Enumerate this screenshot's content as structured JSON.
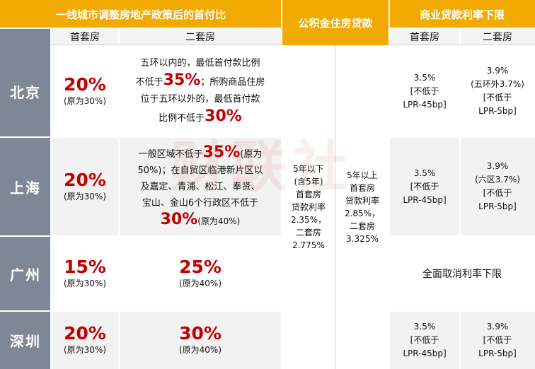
{
  "header": {
    "down_payment_title": "一线城市调整房地产政策后的首付比",
    "provident_title": "公积金住房贷款",
    "commercial_title": "商业贷款利率下限",
    "first_home": "首套房",
    "second_home": "二套房",
    "commercial_first": "首套房",
    "commercial_second": "二套房"
  },
  "rows": [
    {
      "city": "北京",
      "first_pct": "20%",
      "first_note": "(原为30%)",
      "second_lines": [
        {
          "text": "五环以内的，最低首付款比例",
          "red": ""
        },
        {
          "text": "不低于",
          "red": "35%",
          "after": "；所购商品住房"
        },
        {
          "text": "位于五环以外的，最低首付款",
          "red": ""
        },
        {
          "text": "比例不低于",
          "red": "30%",
          "after": ""
        }
      ],
      "com_first": [
        "3.5%",
        "[不低于",
        "LPR-45bp]"
      ],
      "com_second": [
        "3.9%",
        "(五环外3.7%)",
        "[不低于",
        "LPR-5bp]"
      ]
    },
    {
      "city": "上海",
      "first_pct": "20%",
      "first_note": "(原为30%)",
      "second_lines": [
        {
          "text": "一般区域不低于",
          "red": "35%",
          "after": "(原为"
        },
        {
          "text": "50%)；在自贸区临港新片区以",
          "red": ""
        },
        {
          "text": "及嘉定、青浦、松江、奉贤、",
          "red": ""
        },
        {
          "text": "宝山、金山6个行政区不低于",
          "red": ""
        },
        {
          "text": "",
          "red": "30%",
          "after": "(原为40%)"
        }
      ],
      "com_first": [
        "3.5%",
        "[不低于",
        "LPR-45bp]"
      ],
      "com_second": [
        "3.9%",
        "(六区3.7%)",
        "[不低于",
        "LPR-5bp]"
      ]
    },
    {
      "city": "广州",
      "first_pct": "15%",
      "first_note": "(原为30%)",
      "second_pct": "25%",
      "second_note": "(原为40%)",
      "commercial_merged": "全面取消利率下限"
    },
    {
      "city": "深圳",
      "first_pct": "20%",
      "first_note": "(原为30%)",
      "second_pct": "30%",
      "second_note": "(原为40%)",
      "com_first": [
        "3.5%",
        "[不低于",
        "LPR-45bp]"
      ],
      "com_second": [
        "3.9%",
        "[不低于",
        "LPR-5bp]"
      ]
    }
  ],
  "provident": {
    "below5": [
      "5年以下",
      "(含5年)",
      "首套房",
      "贷款利率",
      "2.35%，",
      "二套房",
      "2.775%"
    ],
    "above5": [
      "5年以上",
      "首套房",
      "贷款利率",
      "2.85%，",
      "二套房",
      "3.325%"
    ]
  },
  "watermark": "财联社",
  "colors": {
    "header": "#f2a900",
    "city": "#7e8795",
    "accent": "#c00000",
    "stripe": "#f2f2f2"
  }
}
